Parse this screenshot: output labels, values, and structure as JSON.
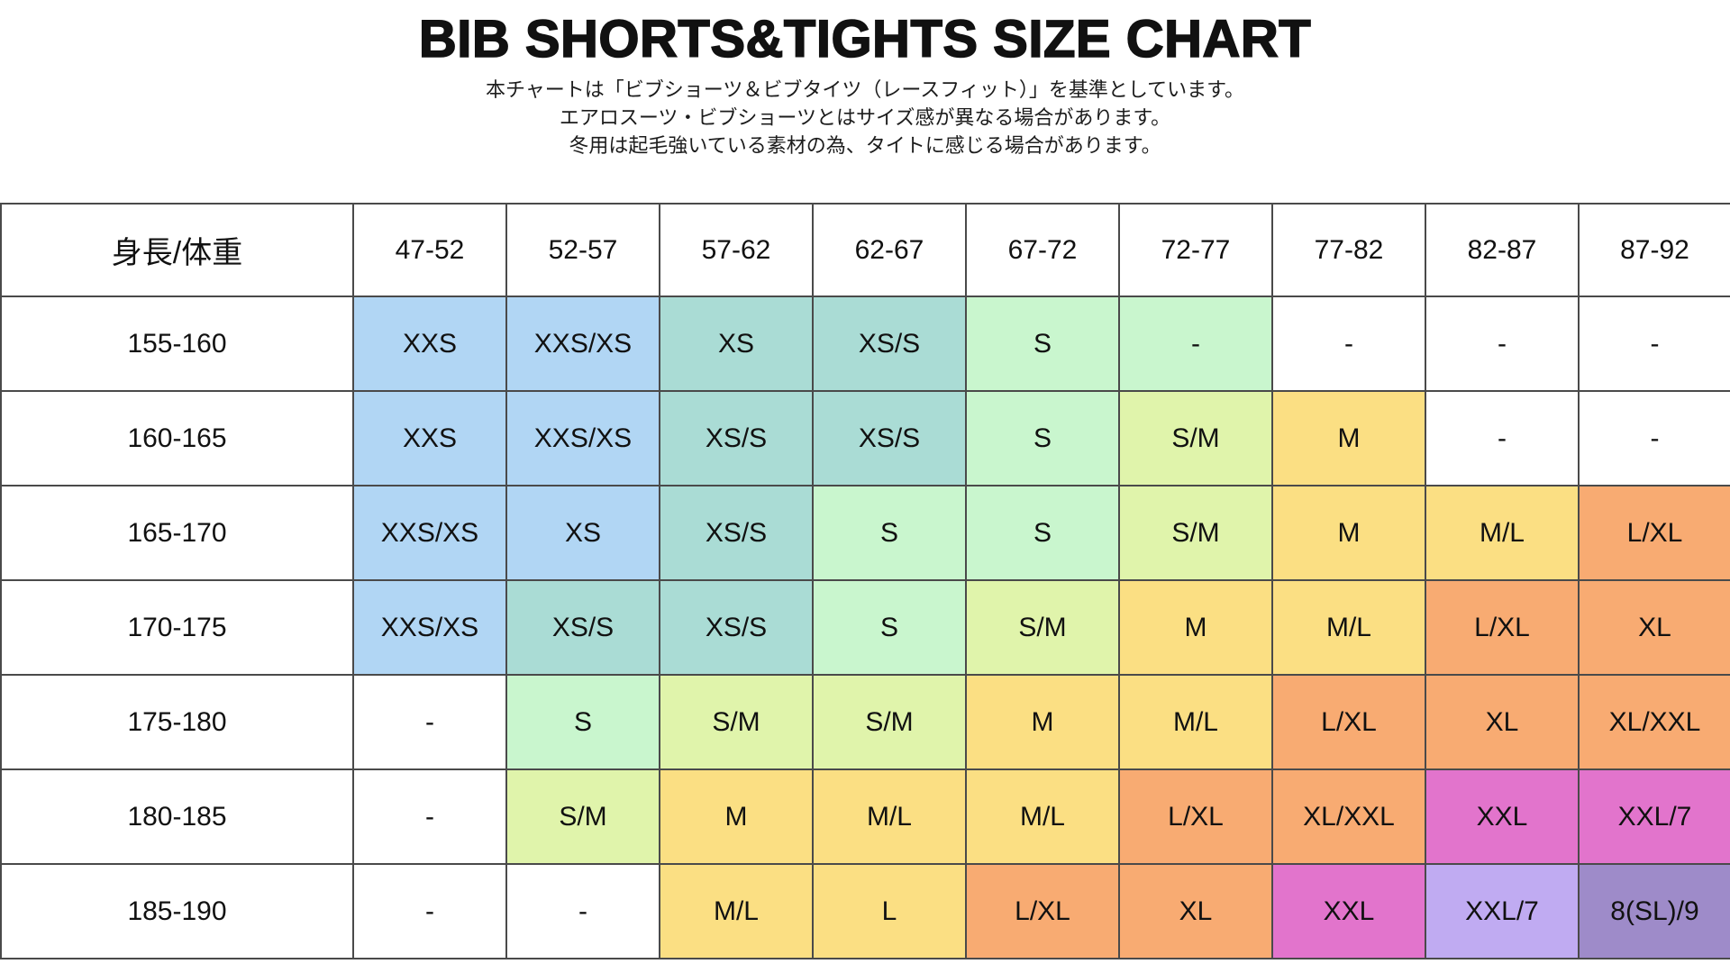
{
  "page": {
    "title": "BIB SHORTS&TIGHTS SIZE CHART",
    "subtitle_lines": [
      "本チャートは「ビブショーツ＆ビブタイツ（レースフィット）」を基準としています。",
      "エアロスーツ・ビブショーツとはサイズ感が異なる場合があります。",
      "冬用は起毛強いている素材の為、タイトに感じる場合があります。"
    ]
  },
  "colors": {
    "white": "#FFFFFF",
    "blue": "#B1D6F4",
    "teal": "#AADCD5",
    "mint": "#C9F6CE",
    "lime": "#E0F4AB",
    "yellow": "#FBDF83",
    "orange": "#F8AB72",
    "magenta": "#E274CC",
    "purple": "#C0ABF2",
    "slate": "#9E8BC9",
    "border": "#4A4A4A",
    "text": "#111111"
  },
  "chart_data": {
    "type": "table",
    "title": "BIB SHORTS&TIGHTS SIZE CHART",
    "corner_label": "身長/体重",
    "x_axis_meaning": "体重 (weight, kg)",
    "y_axis_meaning": "身長 (height, cm)",
    "columns": [
      "47-52",
      "52-57",
      "57-62",
      "62-67",
      "67-72",
      "72-77",
      "77-82",
      "82-87",
      "87-92"
    ],
    "rows": [
      {
        "label": "155-160",
        "cells": [
          [
            "XXS",
            "blue"
          ],
          [
            "XXS/XS",
            "blue"
          ],
          [
            "XS",
            "teal"
          ],
          [
            "XS/S",
            "teal"
          ],
          [
            "S",
            "mint"
          ],
          [
            "-",
            "mint"
          ],
          [
            "-",
            "white"
          ],
          [
            "-",
            "white"
          ],
          [
            "-",
            "white"
          ]
        ]
      },
      {
        "label": "160-165",
        "cells": [
          [
            "XXS",
            "blue"
          ],
          [
            "XXS/XS",
            "blue"
          ],
          [
            "XS/S",
            "teal"
          ],
          [
            "XS/S",
            "teal"
          ],
          [
            "S",
            "mint"
          ],
          [
            "S/M",
            "lime"
          ],
          [
            "M",
            "yellow"
          ],
          [
            "-",
            "white"
          ],
          [
            "-",
            "white"
          ]
        ]
      },
      {
        "label": "165-170",
        "cells": [
          [
            "XXS/XS",
            "blue"
          ],
          [
            "XS",
            "blue"
          ],
          [
            "XS/S",
            "teal"
          ],
          [
            "S",
            "mint"
          ],
          [
            "S",
            "mint"
          ],
          [
            "S/M",
            "lime"
          ],
          [
            "M",
            "yellow"
          ],
          [
            "M/L",
            "yellow"
          ],
          [
            "L/XL",
            "orange"
          ]
        ]
      },
      {
        "label": "170-175",
        "cells": [
          [
            "XXS/XS",
            "blue"
          ],
          [
            "XS/S",
            "teal"
          ],
          [
            "XS/S",
            "teal"
          ],
          [
            "S",
            "mint"
          ],
          [
            "S/M",
            "lime"
          ],
          [
            "M",
            "yellow"
          ],
          [
            "M/L",
            "yellow"
          ],
          [
            "L/XL",
            "orange"
          ],
          [
            "XL",
            "orange"
          ]
        ]
      },
      {
        "label": "175-180",
        "cells": [
          [
            "-",
            "white"
          ],
          [
            "S",
            "mint"
          ],
          [
            "S/M",
            "lime"
          ],
          [
            "S/M",
            "lime"
          ],
          [
            "M",
            "yellow"
          ],
          [
            "M/L",
            "yellow"
          ],
          [
            "L/XL",
            "orange"
          ],
          [
            "XL",
            "orange"
          ],
          [
            "XL/XXL",
            "orange"
          ]
        ]
      },
      {
        "label": "180-185",
        "cells": [
          [
            "-",
            "white"
          ],
          [
            "S/M",
            "lime"
          ],
          [
            "M",
            "yellow"
          ],
          [
            "M/L",
            "yellow"
          ],
          [
            "M/L",
            "yellow"
          ],
          [
            "L/XL",
            "orange"
          ],
          [
            "XL/XXL",
            "orange"
          ],
          [
            "XXL",
            "magenta"
          ],
          [
            "XXL/7",
            "magenta"
          ]
        ]
      },
      {
        "label": "185-190",
        "cells": [
          [
            "-",
            "white"
          ],
          [
            "-",
            "white"
          ],
          [
            "M/L",
            "yellow"
          ],
          [
            "L",
            "yellow"
          ],
          [
            "L/XL",
            "orange"
          ],
          [
            "XL",
            "orange"
          ],
          [
            "XXL",
            "magenta"
          ],
          [
            "XXL/7",
            "purple"
          ],
          [
            "8(SL)/9",
            "slate"
          ]
        ]
      }
    ]
  }
}
